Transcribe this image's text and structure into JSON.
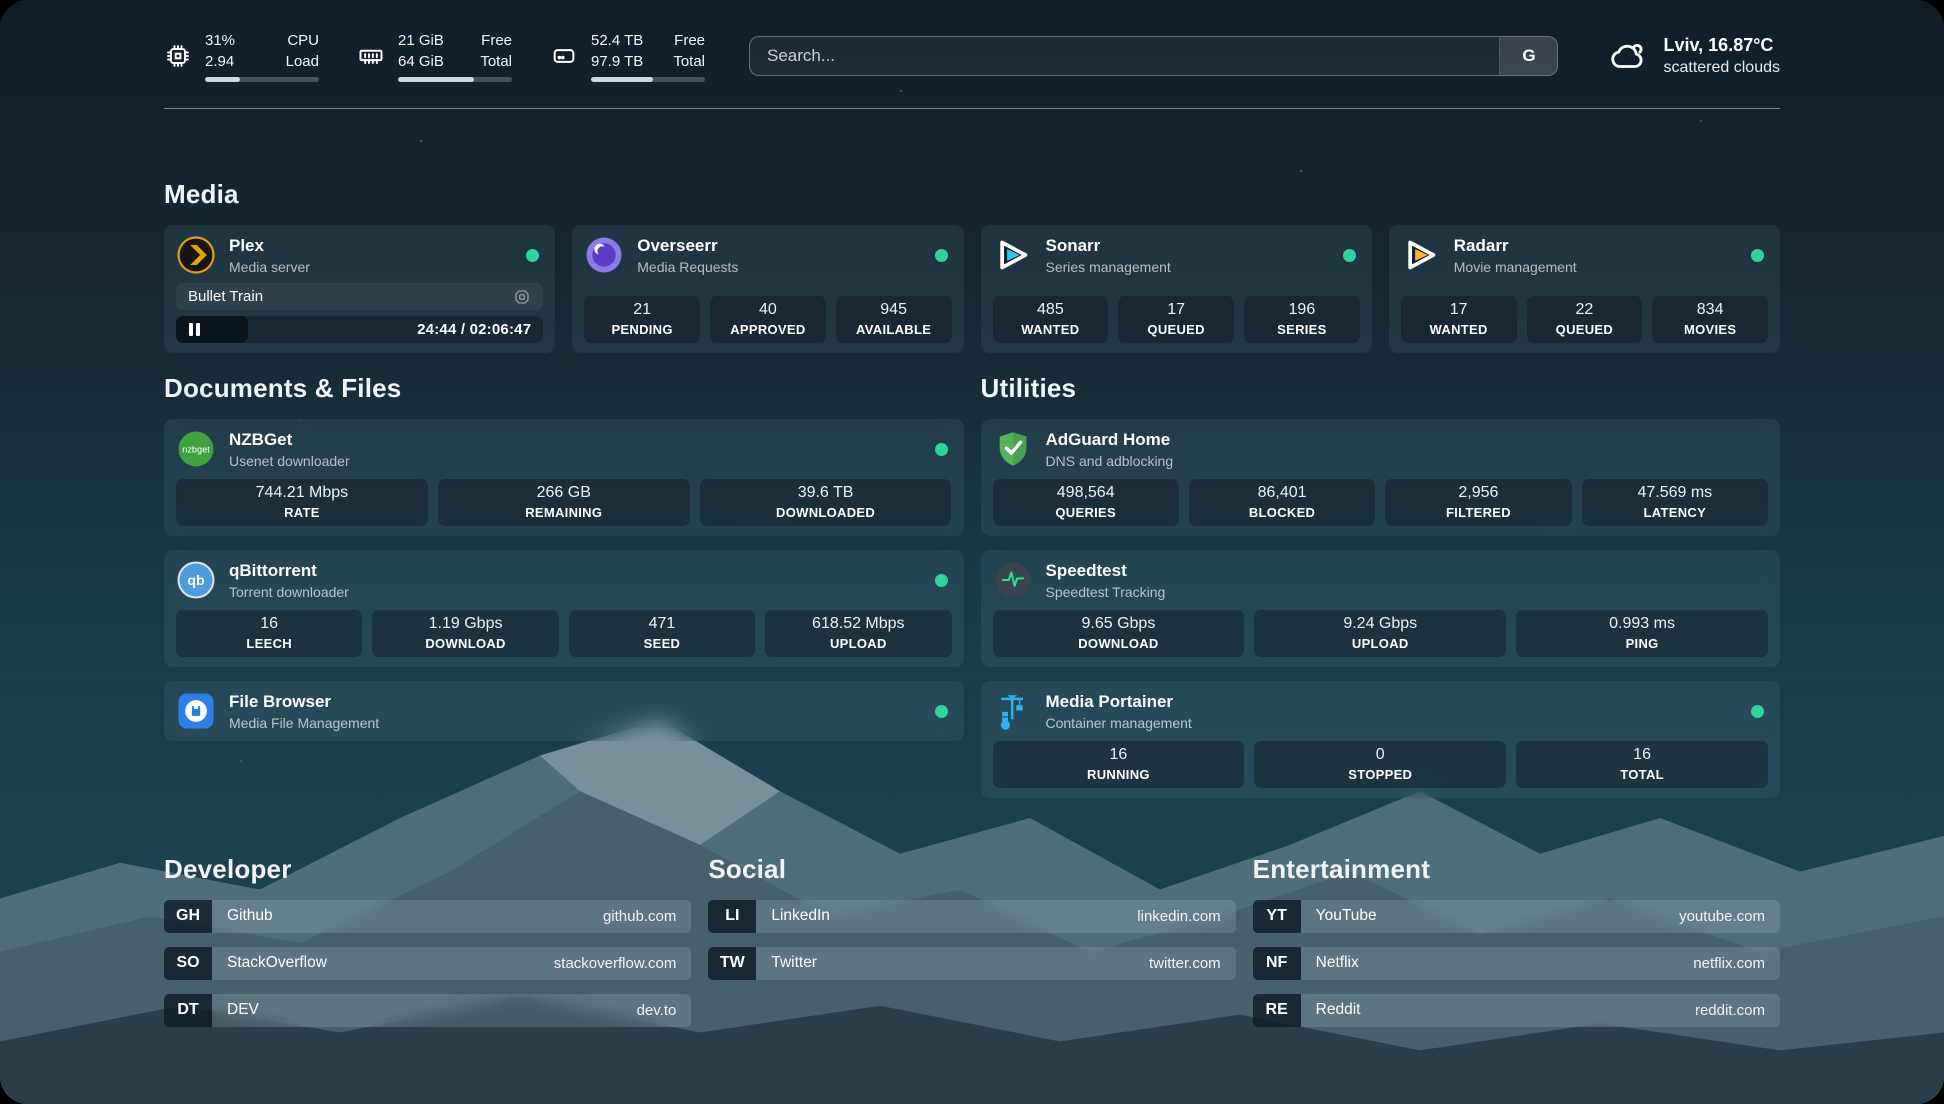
{
  "topbar": {
    "stats": [
      {
        "icon": "cpu-icon",
        "values": [
          "31%",
          "2.94"
        ],
        "labels": [
          "CPU",
          "Load"
        ],
        "progress": 31
      },
      {
        "icon": "memory-icon",
        "values": [
          "21 GiB",
          "64 GiB"
        ],
        "labels": [
          "Free",
          "Total"
        ],
        "progress": 67
      },
      {
        "icon": "disk-icon",
        "values": [
          "52.4 TB",
          "97.9 TB"
        ],
        "labels": [
          "Free",
          "Total"
        ],
        "progress": 54
      }
    ],
    "search": {
      "placeholder": "Search...",
      "provider_label": "G"
    },
    "weather": {
      "icon": "cloud-icon",
      "location_temp": "Lviv, 16.87°C",
      "condition": "scattered clouds"
    }
  },
  "media": {
    "title": "Media",
    "plex": {
      "name": "Plex",
      "subtitle": "Media server",
      "icon": "plex-icon",
      "online": true,
      "now_playing": {
        "title": "Bullet Train",
        "time": "24:44 / 02:06:47",
        "progress_pct": 19.5
      }
    },
    "overseerr": {
      "name": "Overseerr",
      "subtitle": "Media Requests",
      "icon": "overseerr-icon",
      "online": true,
      "stats": [
        {
          "value": "21",
          "label": "PENDING"
        },
        {
          "value": "40",
          "label": "APPROVED"
        },
        {
          "value": "945",
          "label": "AVAILABLE"
        }
      ]
    },
    "sonarr": {
      "name": "Sonarr",
      "subtitle": "Series management",
      "icon": "sonarr-icon",
      "online": true,
      "stats": [
        {
          "value": "485",
          "label": "WANTED"
        },
        {
          "value": "17",
          "label": "QUEUED"
        },
        {
          "value": "196",
          "label": "SERIES"
        }
      ]
    },
    "radarr": {
      "name": "Radarr",
      "subtitle": "Movie management",
      "icon": "radarr-icon",
      "online": true,
      "stats": [
        {
          "value": "17",
          "label": "WANTED"
        },
        {
          "value": "22",
          "label": "QUEUED"
        },
        {
          "value": "834",
          "label": "MOVIES"
        }
      ]
    }
  },
  "documents": {
    "title": "Documents & Files",
    "nzbget": {
      "name": "NZBGet",
      "subtitle": "Usenet downloader",
      "icon": "nzbget-icon",
      "online": true,
      "stats": [
        {
          "value": "744.21 Mbps",
          "label": "RATE"
        },
        {
          "value": "266 GB",
          "label": "REMAINING"
        },
        {
          "value": "39.6 TB",
          "label": "DOWNLOADED"
        }
      ]
    },
    "qbittorrent": {
      "name": "qBittorrent",
      "subtitle": "Torrent downloader",
      "icon": "qbittorrent-icon",
      "online": true,
      "stats": [
        {
          "value": "16",
          "label": "LEECH"
        },
        {
          "value": "1.19 Gbps",
          "label": "DOWNLOAD"
        },
        {
          "value": "471",
          "label": "SEED"
        },
        {
          "value": "618.52 Mbps",
          "label": "UPLOAD"
        }
      ]
    },
    "filebrowser": {
      "name": "File Browser",
      "subtitle": "Media File Management",
      "icon": "filebrowser-icon",
      "online": true
    }
  },
  "utilities": {
    "title": "Utilities",
    "adguard": {
      "name": "AdGuard Home",
      "subtitle": "DNS and adblocking",
      "icon": "adguard-icon",
      "stats": [
        {
          "value": "498,564",
          "label": "QUERIES"
        },
        {
          "value": "86,401",
          "label": "BLOCKED"
        },
        {
          "value": "2,956",
          "label": "FILTERED"
        },
        {
          "value": "47.569 ms",
          "label": "LATENCY"
        }
      ]
    },
    "speedtest": {
      "name": "Speedtest",
      "subtitle": "Speedtest Tracking",
      "icon": "speedtest-icon",
      "stats": [
        {
          "value": "9.65 Gbps",
          "label": "DOWNLOAD"
        },
        {
          "value": "9.24 Gbps",
          "label": "UPLOAD"
        },
        {
          "value": "0.993 ms",
          "label": "PING"
        }
      ]
    },
    "portainer": {
      "name": "Media Portainer",
      "subtitle": "Container management",
      "icon": "portainer-icon",
      "online": true,
      "stats": [
        {
          "value": "16",
          "label": "RUNNING"
        },
        {
          "value": "0",
          "label": "STOPPED"
        },
        {
          "value": "16",
          "label": "TOTAL"
        }
      ]
    }
  },
  "bookmarks": {
    "developer": {
      "title": "Developer",
      "items": [
        {
          "abbr": "GH",
          "name": "Github",
          "url": "github.com"
        },
        {
          "abbr": "SO",
          "name": "StackOverflow",
          "url": "stackoverflow.com"
        },
        {
          "abbr": "DT",
          "name": "DEV",
          "url": "dev.to"
        }
      ]
    },
    "social": {
      "title": "Social",
      "items": [
        {
          "abbr": "LI",
          "name": "LinkedIn",
          "url": "linkedin.com"
        },
        {
          "abbr": "TW",
          "name": "Twitter",
          "url": "twitter.com"
        }
      ]
    },
    "entertainment": {
      "title": "Entertainment",
      "items": [
        {
          "abbr": "YT",
          "name": "YouTube",
          "url": "youtube.com"
        },
        {
          "abbr": "NF",
          "name": "Netflix",
          "url": "netflix.com"
        },
        {
          "abbr": "RE",
          "name": "Reddit",
          "url": "reddit.com"
        }
      ]
    }
  },
  "colors": {
    "status_online": "#2ed49a",
    "progress_fill": "#cfd8de",
    "plex_amber": "#e5a00d",
    "sonarr_cyan": "#31c3f2",
    "radarr_amber": "#fdb52a",
    "nzbget_green": "#3fa13f",
    "qbittorrent_blue": "#4f9bdc",
    "filebrowser_blue": "#2f7fe8",
    "adguard_green": "#57b25c",
    "speedtest_pulse": "#2de08a",
    "portainer_blue": "#2fb2e8",
    "overseerr_purple": "#8d79e8"
  }
}
